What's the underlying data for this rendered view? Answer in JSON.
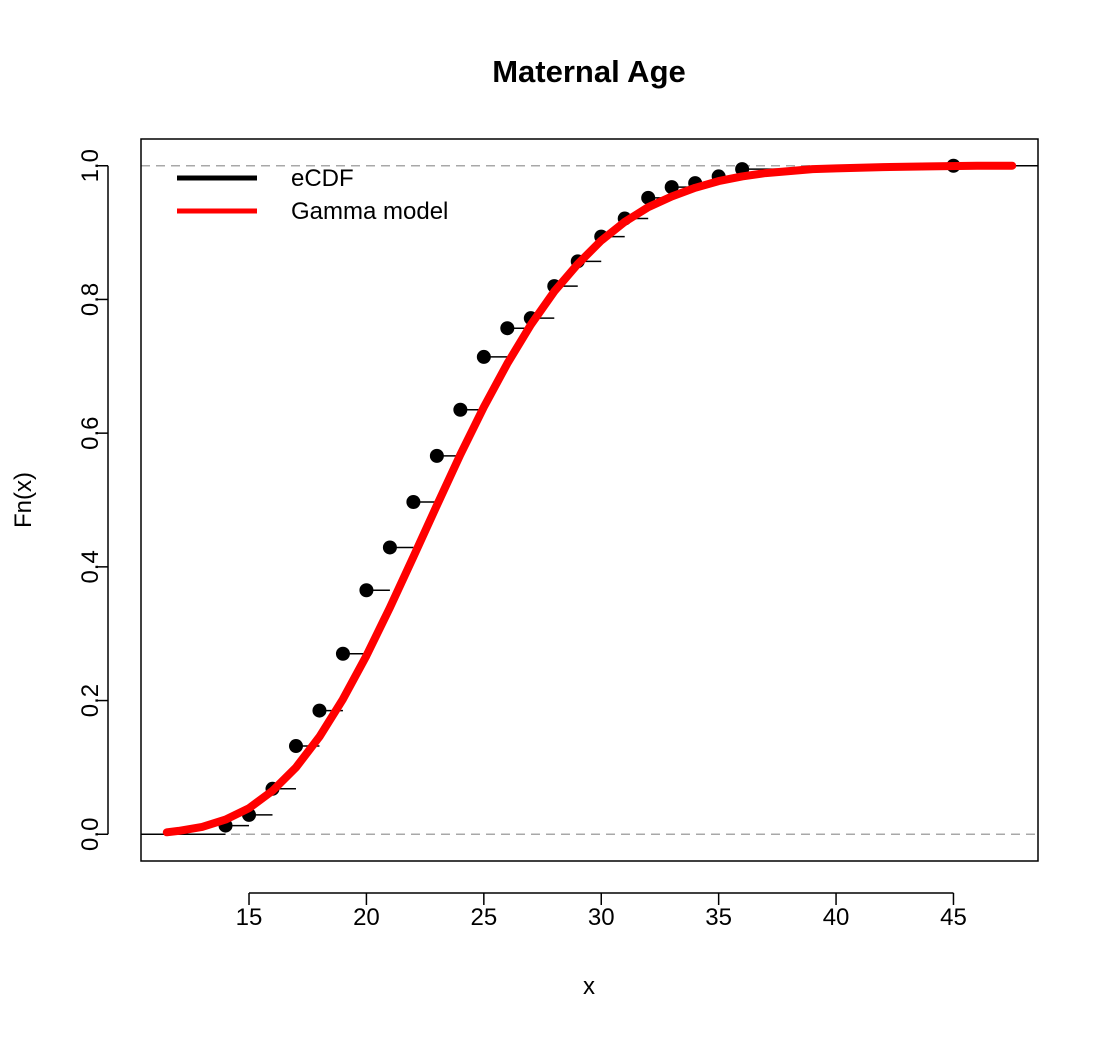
{
  "chart_data": {
    "type": "line",
    "title": "Maternal Age",
    "xlabel": "x",
    "ylabel": "Fn(x)",
    "xlim": [
      10.4,
      48.6
    ],
    "ylim": [
      -0.04,
      1.04
    ],
    "x_ticks": [
      15,
      20,
      25,
      30,
      35,
      40,
      45
    ],
    "y_ticks": [
      0.0,
      0.2,
      0.4,
      0.6,
      0.8,
      1.0
    ],
    "x_tick_labels": [
      "15",
      "20",
      "25",
      "30",
      "35",
      "40",
      "45"
    ],
    "y_tick_labels": [
      "0.0",
      "0.2",
      "0.4",
      "0.6",
      "0.8",
      "1.0"
    ],
    "reference_lines": [
      0,
      1
    ],
    "legend": {
      "position": "top-left",
      "entries": [
        {
          "label": "eCDF",
          "color": "#000000"
        },
        {
          "label": "Gamma model",
          "color": "#ff0000"
        }
      ]
    },
    "series": [
      {
        "name": "eCDF",
        "kind": "step",
        "color": "#000000",
        "x": [
          14,
          15,
          16,
          17,
          18,
          19,
          20,
          21,
          22,
          23,
          24,
          25,
          26,
          27,
          28,
          29,
          30,
          31,
          32,
          33,
          34,
          35,
          36,
          45
        ],
        "y": [
          0.013,
          0.029,
          0.068,
          0.132,
          0.185,
          0.27,
          0.365,
          0.429,
          0.497,
          0.566,
          0.635,
          0.714,
          0.757,
          0.772,
          0.82,
          0.857,
          0.894,
          0.921,
          0.952,
          0.968,
          0.974,
          0.984,
          0.995,
          1.0
        ]
      },
      {
        "name": "Gamma model",
        "kind": "line",
        "color": "#ff0000",
        "x": [
          11.5,
          12,
          13,
          14,
          15,
          16,
          17,
          18,
          19,
          20,
          21,
          22,
          23,
          24,
          25,
          26,
          27,
          28,
          29,
          30,
          31,
          32,
          33,
          34,
          35,
          36,
          37,
          38,
          39,
          40,
          42,
          44,
          46,
          47.5
        ],
        "y": [
          0.003,
          0.005,
          0.011,
          0.022,
          0.039,
          0.065,
          0.1,
          0.146,
          0.202,
          0.267,
          0.339,
          0.415,
          0.492,
          0.568,
          0.639,
          0.704,
          0.762,
          0.812,
          0.853,
          0.888,
          0.916,
          0.938,
          0.954,
          0.967,
          0.977,
          0.984,
          0.989,
          0.992,
          0.995,
          0.996,
          0.998,
          0.999,
          1.0,
          1.0
        ]
      }
    ]
  }
}
